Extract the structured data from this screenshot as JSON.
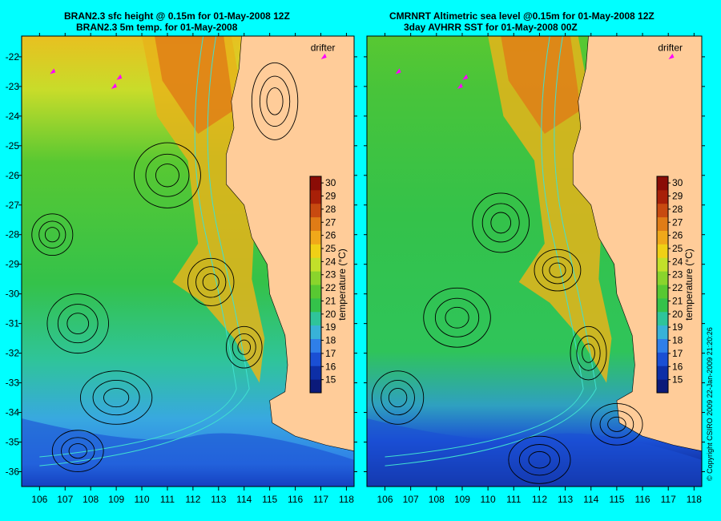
{
  "panels": [
    {
      "id": "left",
      "title_line1": "BRAN2.3 sfc height @ 0.15m for 01-May-2008 12Z",
      "title_line2": "BRAN2.3 5m temp. for 01-May-2008"
    },
    {
      "id": "right",
      "title_line1": "CMRNRT Altimetric sea level  @0.15m  for 01-May-2008 12Z",
      "title_line2": "3day AVHRR SST for 01-May-2008 00Z"
    }
  ],
  "legend": {
    "drifter_label": "drifter",
    "colorbar_label": "temperature (°C)",
    "colorbar_ticks": [
      "30",
      "29",
      "28",
      "27",
      "26",
      "25",
      "24",
      "23",
      "22",
      "21",
      "20",
      "19",
      "18",
      "17",
      "16",
      "15"
    ],
    "colorbar_range": [
      14,
      30.5
    ],
    "colors": [
      "#0b1a7a",
      "#0d2fa6",
      "#1a4fd4",
      "#2f7fe8",
      "#38b2d8",
      "#2fc49a",
      "#34c24a",
      "#58c832",
      "#8ad42c",
      "#c2e02a",
      "#f0d016",
      "#f0a81a",
      "#e07c16",
      "#c84a10",
      "#a82008",
      "#8a0c06"
    ]
  },
  "axes": {
    "x_ticks": [
      "106",
      "107",
      "108",
      "109",
      "110",
      "111",
      "112",
      "113",
      "114",
      "115",
      "116",
      "117",
      "118"
    ],
    "y_ticks": [
      "-22",
      "-23",
      "-24",
      "-25",
      "-26",
      "-27",
      "-28",
      "-29",
      "-30",
      "-31",
      "-32",
      "-33",
      "-34",
      "-35",
      "-36"
    ],
    "lon_range": [
      105.3,
      118.3
    ],
    "lat_range": [
      -36.5,
      -21.3
    ]
  },
  "colors": {
    "background": "#00ffff",
    "land": "#ffcc99",
    "drifter": "#ff00ff",
    "contour": "#000000",
    "isobath": "#40e0d0"
  },
  "copyright": "© Copyright CSIRO 2009   22-Jan-2009 21:20:26"
}
